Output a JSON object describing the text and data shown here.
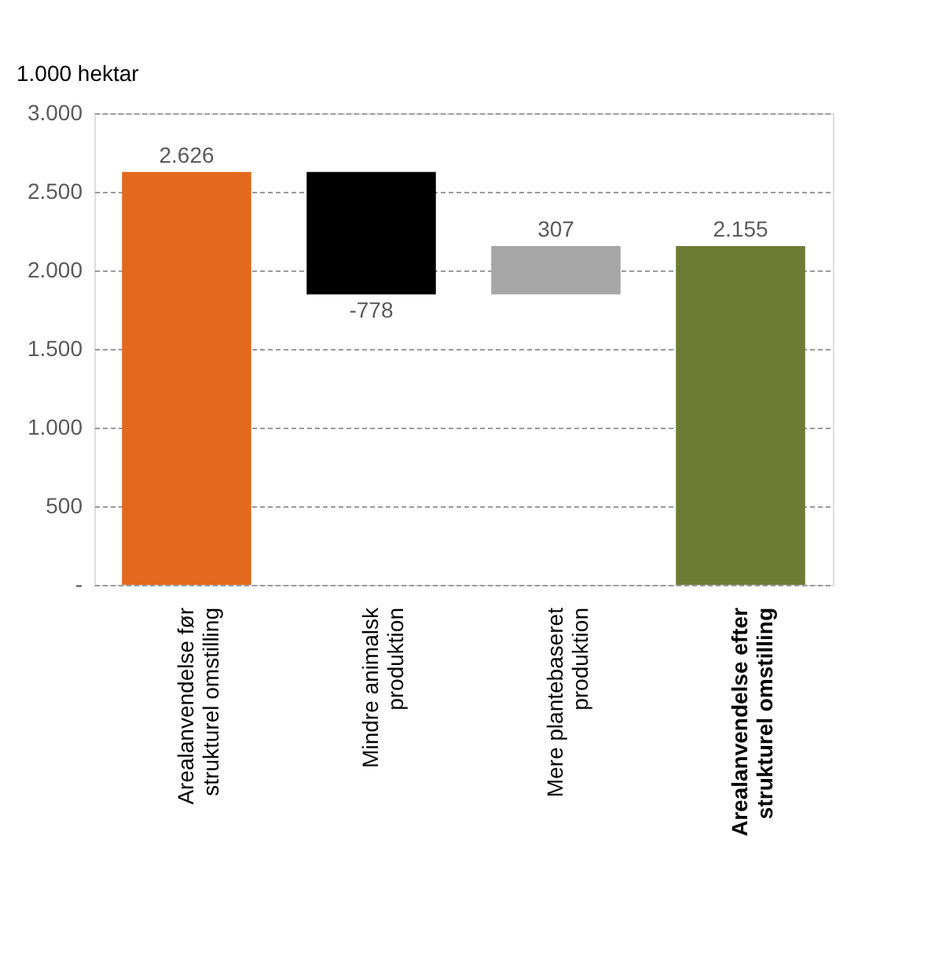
{
  "chart_data": {
    "type": "bar",
    "ylabel": "1.000 hektar",
    "categories": [
      "Arealanvendelse før\nstrukturel omstilling",
      "Mindre animalsk\nproduktion",
      "Mere plantebaseret\nproduktion",
      "Arealanvendelse efter\nstrukturel omstilling"
    ],
    "values": [
      2626,
      -778,
      307,
      2155
    ],
    "base": [
      0,
      2626,
      1848,
      0
    ],
    "colors": [
      "#e2691d",
      "#000000",
      "#a6a6a6",
      "#6e7b35"
    ],
    "value_labels": [
      "2.626",
      "-778",
      "307",
      "2.155"
    ],
    "ylim": [
      0,
      3000
    ],
    "yticks": [
      {
        "value": 0,
        "label": "-"
      },
      500,
      {
        "value": 1000,
        "label": "1.000"
      },
      {
        "value": 1500,
        "label": "1.500"
      },
      {
        "value": 2000,
        "label": "2.000"
      },
      {
        "value": 2500,
        "label": "2.500"
      },
      {
        "value": 3000,
        "label": "3.000"
      }
    ],
    "grid": "y"
  }
}
